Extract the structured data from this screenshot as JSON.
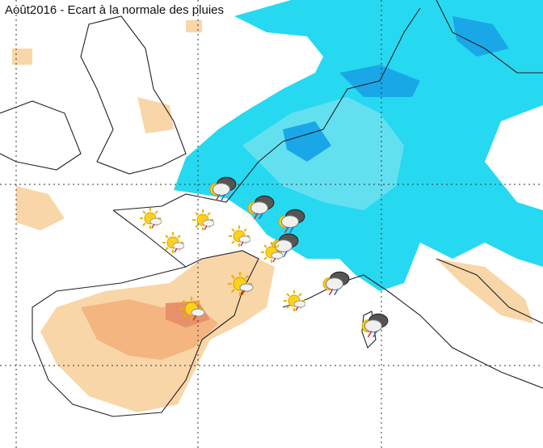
{
  "title": "Août2016 - Ecart à la normale des pluies"
}
